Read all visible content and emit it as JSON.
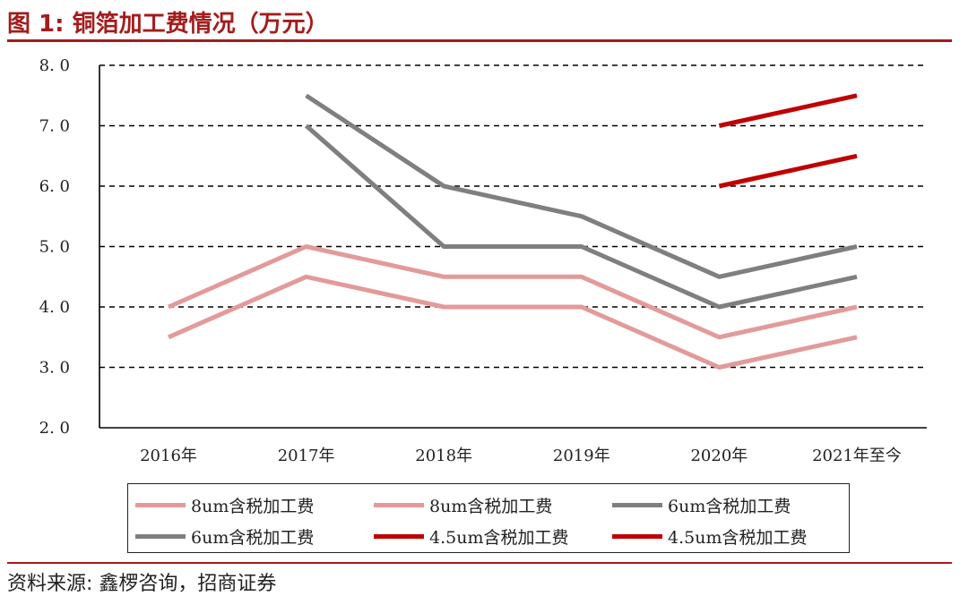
{
  "header": {
    "title": "图 1: 铜箔加工费情况（万元）"
  },
  "footer": {
    "source": "资料来源: 鑫椤咨询，招商证券"
  },
  "colors": {
    "accent": "#a31c1c",
    "pink": "#e39a9a",
    "gray": "#7f7f7f",
    "red": "#c00000"
  },
  "chart_data": {
    "type": "line",
    "title": "",
    "xlabel": "",
    "ylabel": "",
    "categories": [
      "2016年",
      "2017年",
      "2018年",
      "2019年",
      "2020年",
      "2021年至今"
    ],
    "ylim": [
      2.0,
      8.0
    ],
    "yticks": [
      "8.0",
      "7.0",
      "6.0",
      "5.0",
      "4.0",
      "3.0",
      "2.0"
    ],
    "grid": true,
    "legend_position": "bottom",
    "series": [
      {
        "name": "8um含税加工费",
        "color": "#e39a9a",
        "values": [
          4.0,
          5.0,
          4.5,
          4.5,
          3.5,
          4.0
        ]
      },
      {
        "name": "8um含税加工费",
        "color": "#e39a9a",
        "values": [
          3.5,
          4.5,
          4.0,
          4.0,
          3.0,
          3.5
        ]
      },
      {
        "name": "6um含税加工费",
        "color": "#7f7f7f",
        "values": [
          null,
          7.5,
          6.0,
          5.5,
          4.5,
          5.0
        ]
      },
      {
        "name": "6um含税加工费",
        "color": "#7f7f7f",
        "values": [
          null,
          7.0,
          5.0,
          5.0,
          4.0,
          4.5
        ]
      },
      {
        "name": "4.5um含税加工费",
        "color": "#c00000",
        "values": [
          null,
          null,
          null,
          null,
          7.0,
          7.5
        ]
      },
      {
        "name": "4.5um含税加工费",
        "color": "#c00000",
        "values": [
          null,
          null,
          null,
          null,
          6.0,
          6.5
        ]
      }
    ]
  }
}
